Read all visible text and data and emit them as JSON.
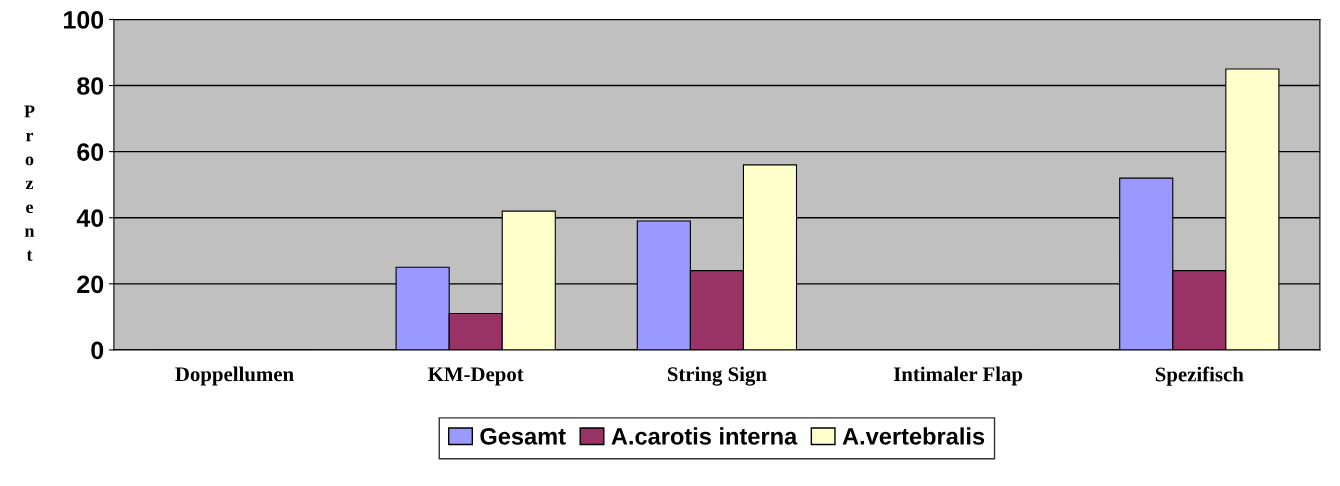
{
  "chart_data": {
    "type": "bar",
    "ylabel": "Prozent",
    "categories": [
      "Doppellumen",
      "KM-Depot",
      "String Sign",
      "Intimaler Flap",
      "Spezifisch"
    ],
    "series": [
      {
        "name": "Gesamt",
        "color": "#9999ff",
        "values": [
          0,
          25,
          39,
          0,
          52
        ]
      },
      {
        "name": "A.carotis interna",
        "color": "#993366",
        "values": [
          0,
          11,
          24,
          0,
          24
        ]
      },
      {
        "name": "A.vertebralis",
        "color": "#ffffcc",
        "values": [
          0,
          42,
          56,
          0,
          85
        ]
      }
    ],
    "ylim": [
      0,
      100
    ],
    "yticks": [
      0,
      20,
      40,
      60,
      80,
      100
    ],
    "grid": "y",
    "legend": "bottom"
  }
}
